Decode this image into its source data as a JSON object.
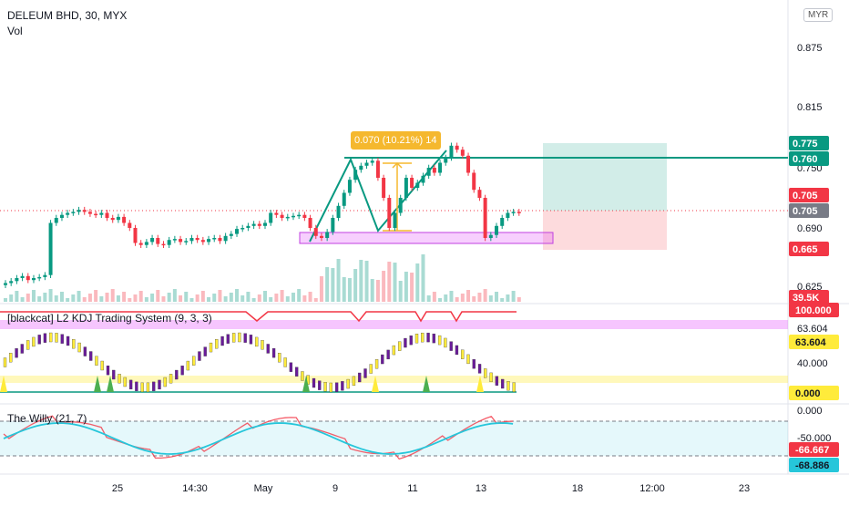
{
  "header": {
    "symbol": "DELEUM BHD, 30, MYX",
    "vol_label": "Vol",
    "currency": "MYR"
  },
  "indicators": {
    "kdj_title": "[blackcat] L2 KDJ Trading System (9, 3, 3)",
    "willy_title": "The Willy (21, 7)"
  },
  "annotations": {
    "measure_label": "0.070 (10.21%) 14"
  },
  "colors": {
    "accent_teal": "#089981",
    "red": "#f23645",
    "yellow": "#ffeb3b",
    "magenta": "#e040fb",
    "cyan": "#26c6da",
    "orange_label": "#f5b82e"
  },
  "chart_data": [
    {
      "type": "candlestick",
      "title": "DELEUM BHD, 30, MYX",
      "price_axis_ticks": [
        "0.875",
        "0.815",
        "0.750",
        "0.690",
        "0.625"
      ],
      "price_badges": [
        {
          "value": "0.775",
          "color": "#089981"
        },
        {
          "value": "0.760",
          "color": "#089981"
        },
        {
          "value": "0.705",
          "color": "#f23645"
        },
        {
          "value": "0.705",
          "color": "#787b86"
        },
        {
          "value": "0.665",
          "color": "#f23645"
        },
        {
          "value": "39.5K",
          "color": "#f23645"
        }
      ],
      "time_axis_ticks": [
        "25",
        "14:30",
        "May",
        "9",
        "11",
        "13",
        "18",
        "12:00",
        "23"
      ],
      "closes": [
        0.635,
        0.637,
        0.64,
        0.642,
        0.638,
        0.64,
        0.641,
        0.643,
        0.695,
        0.7,
        0.703,
        0.705,
        0.706,
        0.708,
        0.706,
        0.704,
        0.703,
        0.705,
        0.7,
        0.698,
        0.701,
        0.695,
        0.69,
        0.675,
        0.673,
        0.676,
        0.68,
        0.674,
        0.673,
        0.678,
        0.679,
        0.676,
        0.677,
        0.68,
        0.678,
        0.676,
        0.679,
        0.68,
        0.677,
        0.682,
        0.684,
        0.689,
        0.69,
        0.692,
        0.694,
        0.692,
        0.695,
        0.705,
        0.703,
        0.7,
        0.701,
        0.702,
        0.703,
        0.7,
        0.69,
        0.682,
        0.68,
        0.686,
        0.7,
        0.712,
        0.725,
        0.738,
        0.748,
        0.752,
        0.755,
        0.757,
        0.74,
        0.72,
        0.69,
        0.705,
        0.72,
        0.74,
        0.73,
        0.735,
        0.742,
        0.75,
        0.745,
        0.755,
        0.76,
        0.772,
        0.768,
        0.762,
        0.745,
        0.728,
        0.72,
        0.68,
        0.683,
        0.692,
        0.7,
        0.705,
        0.706,
        0.705
      ]
    },
    {
      "type": "line",
      "title": "[blackcat] L2 KDJ Trading System (9, 3, 3)",
      "y_axis_ticks": [
        "100.000",
        "63.604",
        "40.000",
        "0.000"
      ],
      "badges": [
        {
          "value": "100.000",
          "color": "#f23645"
        },
        {
          "value": "63.604",
          "color": "#ffeb3b"
        },
        {
          "value": "0.000",
          "color": "#ffeb3b"
        }
      ]
    },
    {
      "type": "line",
      "title": "The Willy (21, 7)",
      "y_axis_ticks": [
        "0.000",
        "-50.000"
      ],
      "badges": [
        {
          "value": "-66.667",
          "color": "#f23645"
        },
        {
          "value": "-68.886",
          "color": "#26c6da"
        }
      ]
    }
  ]
}
